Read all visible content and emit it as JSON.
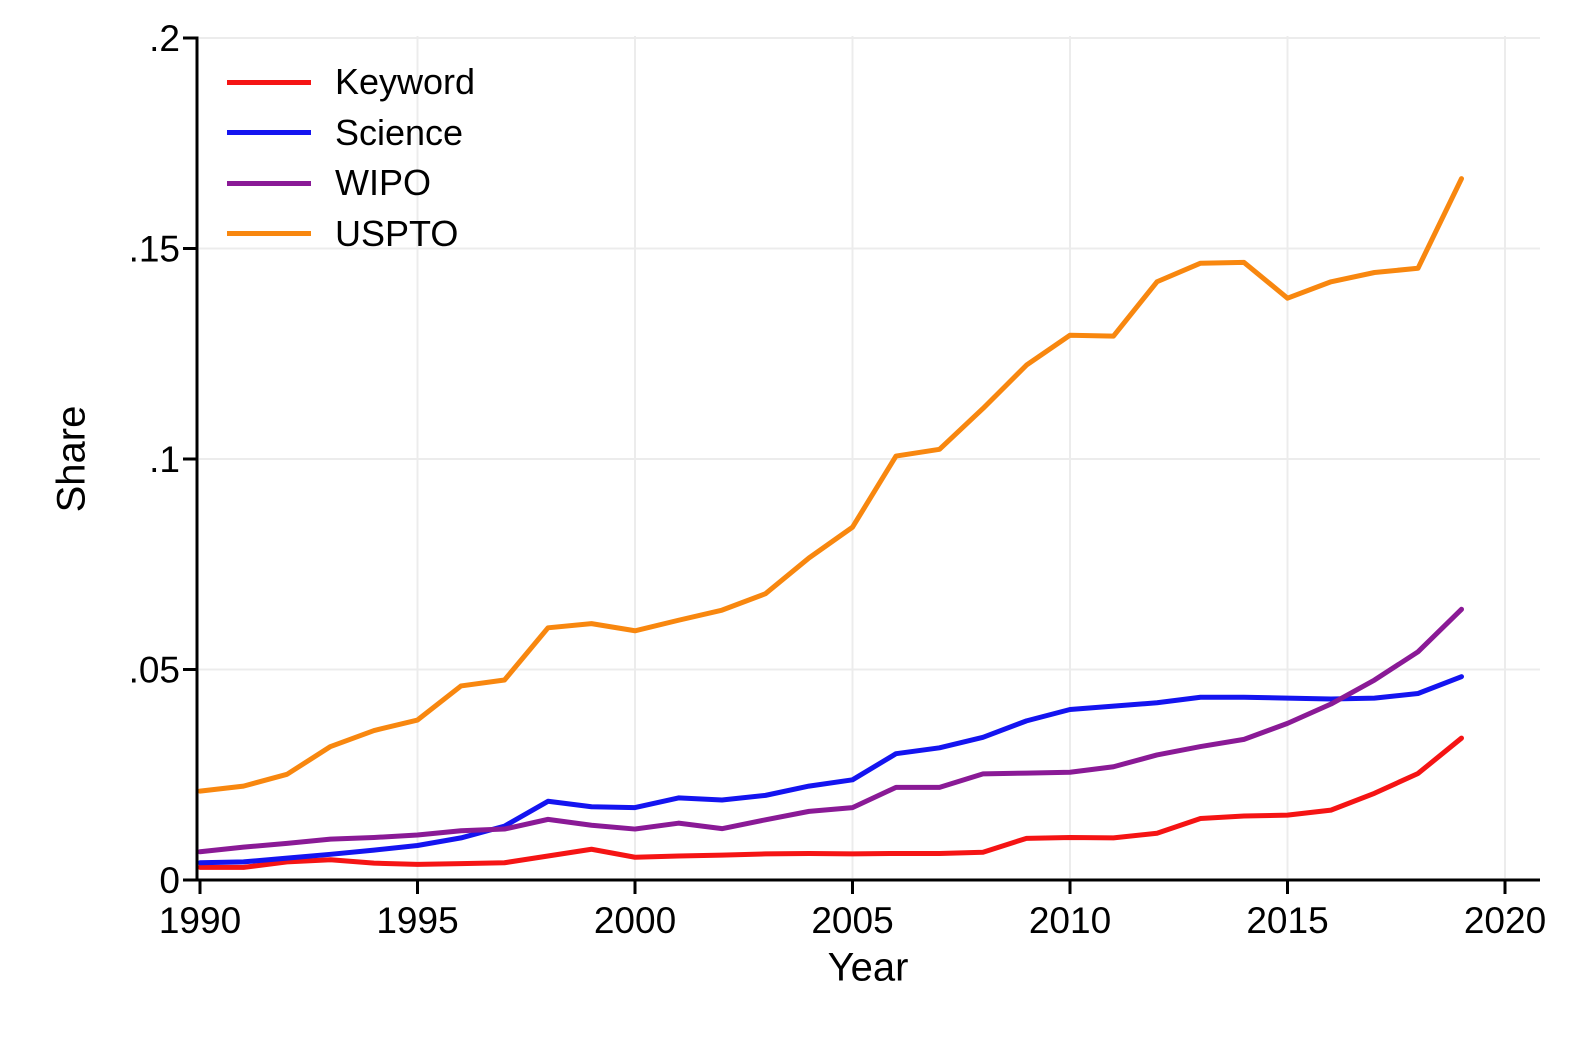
{
  "y_axis": {
    "title": "Share",
    "ticks": [
      {
        "label": ".2",
        "value": 0.2
      },
      {
        "label": ".15",
        "value": 0.15
      },
      {
        "label": ".1",
        "value": 0.1
      },
      {
        "label": ".05",
        "value": 0.05
      },
      {
        "label": "0",
        "value": 0
      }
    ]
  },
  "x_axis": {
    "title": "Year",
    "ticks": [
      {
        "label": "1990",
        "value": 1990
      },
      {
        "label": "1995",
        "value": 1995
      },
      {
        "label": "2000",
        "value": 2000
      },
      {
        "label": "2005",
        "value": 2005
      },
      {
        "label": "2010",
        "value": 2010
      },
      {
        "label": "2015",
        "value": 2015
      },
      {
        "label": "2020",
        "value": 2020
      }
    ]
  },
  "legend": {
    "items": [
      {
        "label": "Keyword",
        "color": "#f51414"
      },
      {
        "label": "Science",
        "color": "#1414f0"
      },
      {
        "label": "WIPO",
        "color": "#8a1a96"
      },
      {
        "label": "USPTO",
        "color": "#f8870f"
      }
    ]
  },
  "chart_data": {
    "type": "line",
    "title": "",
    "xlabel": "Year",
    "ylabel": "Share",
    "xlim": [
      1990,
      2020
    ],
    "ylim": [
      0,
      0.2
    ],
    "grid": true,
    "legend_position": "top-left",
    "x": [
      1990,
      1991,
      1992,
      1993,
      1994,
      1995,
      1996,
      1997,
      1998,
      1999,
      2000,
      2001,
      2002,
      2003,
      2004,
      2005,
      2006,
      2007,
      2008,
      2009,
      2010,
      2011,
      2012,
      2013,
      2014,
      2015,
      2016,
      2017,
      2018,
      2019
    ],
    "series": [
      {
        "name": "Keyword",
        "color": "#f51414",
        "values": [
          0.003,
          0.003,
          0.0043,
          0.0048,
          0.004,
          0.0037,
          0.0039,
          0.0041,
          0.0057,
          0.0073,
          0.0054,
          0.0057,
          0.0059,
          0.0062,
          0.0063,
          0.0062,
          0.0063,
          0.0063,
          0.0066,
          0.0099,
          0.0101,
          0.01,
          0.0111,
          0.0146,
          0.0152,
          0.0154,
          0.0166,
          0.0206,
          0.0253,
          0.0337
        ]
      },
      {
        "name": "Science",
        "color": "#1414f0",
        "values": [
          0.0041,
          0.0043,
          0.0052,
          0.0061,
          0.0071,
          0.0082,
          0.01,
          0.0128,
          0.0187,
          0.0174,
          0.0172,
          0.0195,
          0.019,
          0.0201,
          0.0223,
          0.0238,
          0.03,
          0.0314,
          0.0339,
          0.0378,
          0.0405,
          0.0413,
          0.0421,
          0.0434,
          0.0434,
          0.0432,
          0.043,
          0.0432,
          0.0443,
          0.0483
        ]
      },
      {
        "name": "WIPO",
        "color": "#8a1a96",
        "values": [
          0.0067,
          0.0078,
          0.0087,
          0.0097,
          0.0101,
          0.0107,
          0.0117,
          0.0121,
          0.0144,
          0.013,
          0.0121,
          0.0135,
          0.0122,
          0.0143,
          0.0163,
          0.0172,
          0.022,
          0.022,
          0.0252,
          0.0254,
          0.0256,
          0.0269,
          0.0297,
          0.0317,
          0.0334,
          0.0372,
          0.0418,
          0.0475,
          0.0542,
          0.0643
        ]
      },
      {
        "name": "USPTO",
        "color": "#f8870f",
        "values": [
          0.0211,
          0.0223,
          0.0251,
          0.0317,
          0.0355,
          0.038,
          0.0461,
          0.0475,
          0.0599,
          0.0609,
          0.0592,
          0.0617,
          0.0641,
          0.068,
          0.0765,
          0.0838,
          0.1007,
          0.1023,
          0.112,
          0.1223,
          0.1294,
          0.1292,
          0.1421,
          0.1465,
          0.1467,
          0.1382,
          0.1421,
          0.1443,
          0.1453,
          0.1666
        ]
      }
    ]
  }
}
